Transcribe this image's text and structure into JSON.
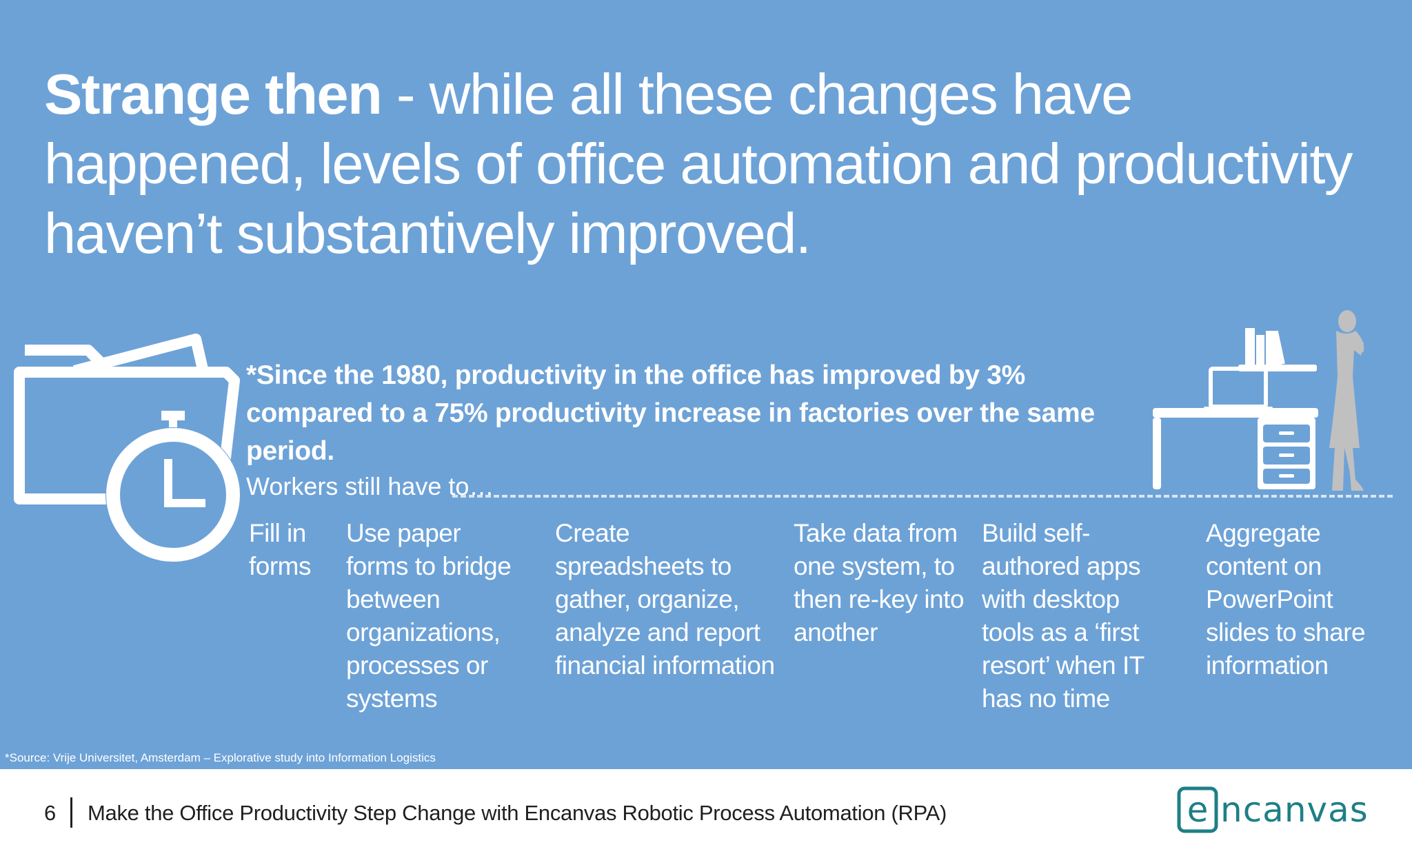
{
  "headline": {
    "bold": "Strange then",
    "rest": " - while all these changes have happened, levels of office automation and productivity haven’t substantively improved."
  },
  "stat": "*Since the 1980, productivity in the office has improved by 3% compared to a 75% productivity increase in factories over the same period.",
  "lead": "Workers still have to…",
  "tasks": [
    "Fill in forms",
    "Use paper forms to bridge between organizations, processes or systems",
    "Create spreadsheets to gather, organize, analyze and report financial information",
    "Take data from one system, to then re-key into another",
    "Build self-authored apps with desktop tools as a ‘first resort’ when IT has no time",
    "Aggregate content on PowerPoint slides to share information"
  ],
  "source": "*Source: Vrije Universitet, Amsterdam – Explorative study into Information Logistics",
  "footer": {
    "page": "6",
    "title": "Make the Office Productivity Step Change with Encanvas Robotic Process Automation (RPA)",
    "logo_text": "encanvas"
  },
  "colors": {
    "slide_bg": "#6da2d7",
    "text": "#ffffff",
    "silhouette": "#c0c0c0",
    "logo": "#1e7f86"
  },
  "icons": [
    "folder-icon",
    "stopwatch-icon",
    "office-desk-icon",
    "person-silhouette-icon"
  ]
}
